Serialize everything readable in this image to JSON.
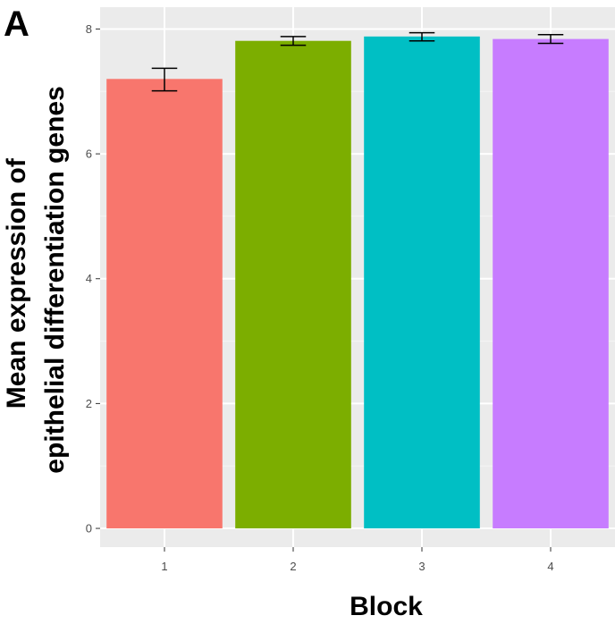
{
  "panel_label": "A",
  "colors": {
    "panel_background": "#ebebeb",
    "grid_major": "#ffffff",
    "grid_minor": "#f5f5f5",
    "tick_text": "#4d4d4d",
    "error_bar": "#000000"
  },
  "chart_data": {
    "type": "bar",
    "categories": [
      "1",
      "2",
      "3",
      "4"
    ],
    "values": [
      7.2,
      7.81,
      7.88,
      7.84
    ],
    "error_bars": [
      {
        "low": 7.01,
        "high": 7.37
      },
      {
        "low": 7.74,
        "high": 7.88
      },
      {
        "low": 7.81,
        "high": 7.94
      },
      {
        "low": 7.77,
        "high": 7.91
      }
    ],
    "bar_colors": [
      "#F8766D",
      "#7CAE00",
      "#00BFC4",
      "#C77CFF"
    ],
    "xlabel": "Block",
    "ylabel_lines": [
      "Mean expression of",
      "epithelial differentiation genes"
    ],
    "ylim": [
      -0.3,
      8.35
    ],
    "yticks": [
      0,
      2,
      4,
      6,
      8
    ],
    "ytick_labels": [
      "0",
      "2",
      "4",
      "6",
      "8"
    ],
    "grid": true,
    "legend": "none"
  }
}
